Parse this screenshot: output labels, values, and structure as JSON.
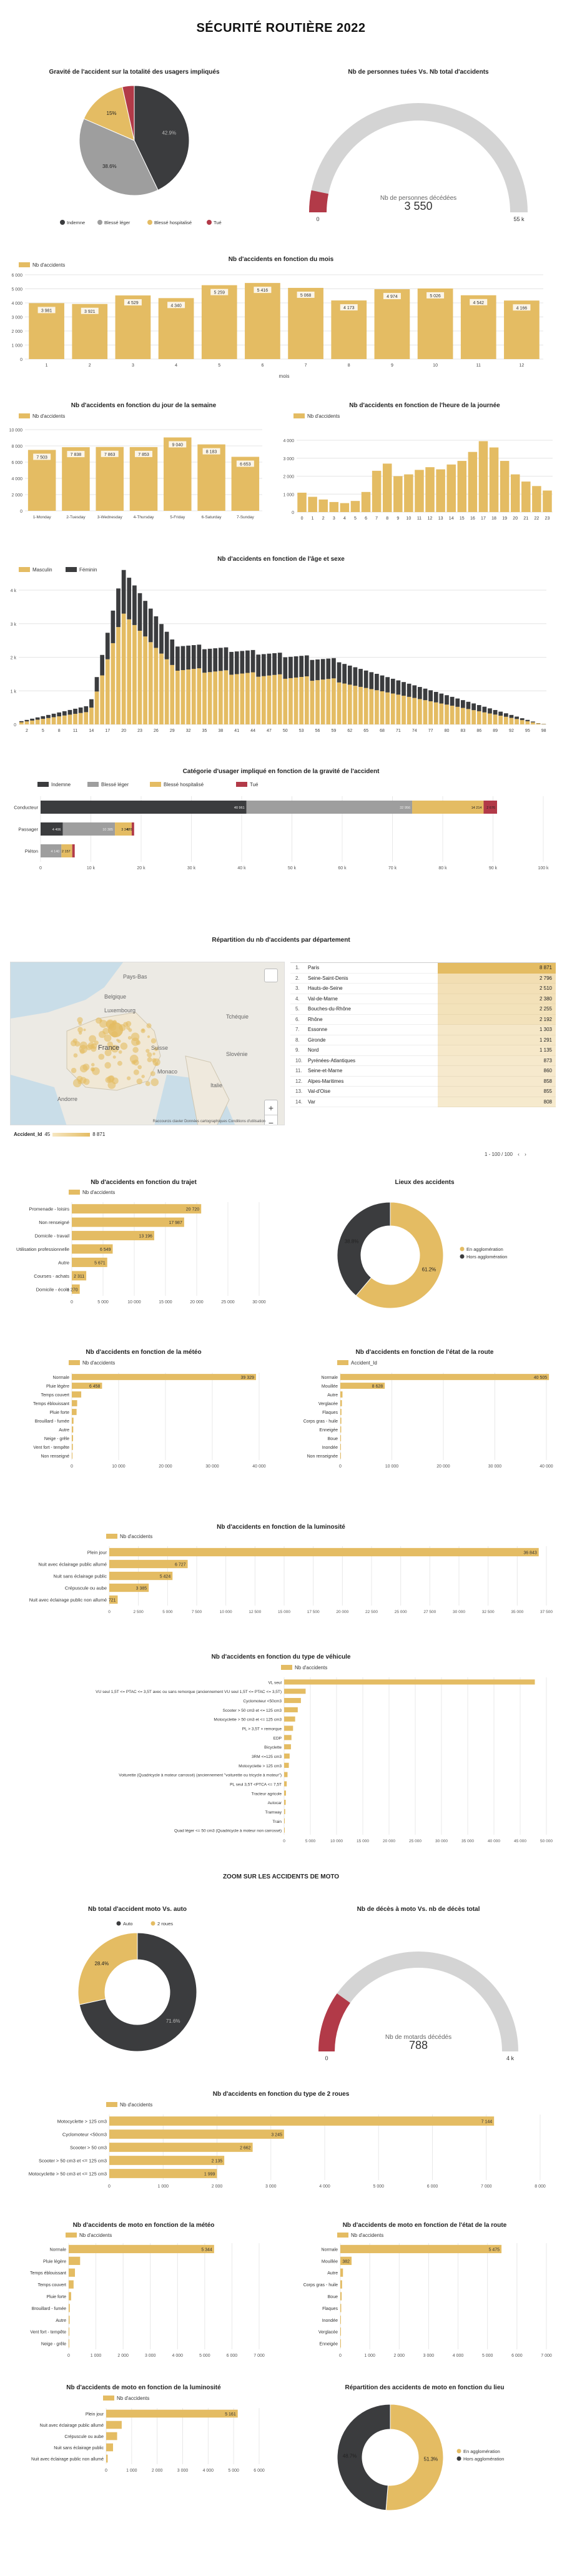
{
  "page_title": "SÉCURITÉ ROUTIÈRE 2022",
  "zoom_title": "ZOOM SUR LES ACCIDENTS DE MOTO",
  "colors": {
    "gold": "#e4bc63",
    "dark": "#3b3c3e",
    "grey": "#9e9e9e",
    "red": "#b23a48",
    "gauge_bg": "#d4d4d4"
  },
  "chart_data": [
    {
      "id": "gravite_pie",
      "type": "pie",
      "title": "Gravité de l'accident sur la totalité des usagers impliqués",
      "categories": [
        "Indemne",
        "Blessé léger",
        "Blessé hospitalisé",
        "Tué"
      ],
      "values": [
        42.9,
        38.6,
        15.0,
        3.5
      ],
      "labels": [
        "42.9%",
        "38.6%",
        "15%",
        ""
      ],
      "colors": [
        "#3b3c3e",
        "#9e9e9e",
        "#e4bc63",
        "#b23a48"
      ]
    },
    {
      "id": "tues_gauge",
      "type": "gauge",
      "title": "Nb de personnes tuées Vs. Nb total d'accidents",
      "value": 3550,
      "value_label": "3 550",
      "caption": "Nb de personnes décédées",
      "min_label": "0",
      "max_label": "55 k",
      "max": 55000
    },
    {
      "id": "mois_bar",
      "type": "bar",
      "title": "Nb d'accidents en fonction du mois",
      "legend": "Nb d'accidents",
      "xlabel": "mois",
      "categories": [
        "1",
        "2",
        "3",
        "4",
        "5",
        "6",
        "7",
        "8",
        "9",
        "10",
        "11",
        "12"
      ],
      "values": [
        3981,
        3921,
        4529,
        4340,
        5259,
        5416,
        5068,
        4173,
        4974,
        5026,
        4542,
        4166
      ],
      "labels": [
        "3 981",
        "3 921",
        "4 529",
        "4 340",
        "5 259",
        "5 416",
        "5 068",
        "4 173",
        "4 974",
        "5 026",
        "4 542",
        "4 166"
      ],
      "yticks": [
        "0",
        "1 000",
        "2 000",
        "3 000",
        "4 000",
        "5 000",
        "6 000"
      ],
      "ylim": [
        0,
        6000
      ]
    },
    {
      "id": "jour_bar",
      "type": "bar",
      "title": "Nb d'accidents en fonction du jour de la semaine",
      "legend": "Nb d'accidents",
      "categories": [
        "1-Monday",
        "2-Tuesday",
        "3-Wednesday",
        "4-Thursday",
        "5-Friday",
        "6-Saturday",
        "7-Sunday"
      ],
      "values": [
        7503,
        7838,
        7863,
        7853,
        9040,
        8183,
        6653
      ],
      "labels": [
        "7 503",
        "7 838",
        "7 863",
        "7 853",
        "9 040",
        "8 183",
        "6 653"
      ],
      "yticks": [
        "0",
        "2 000",
        "4 000",
        "6 000",
        "8 000",
        "10 000"
      ],
      "ylim": [
        0,
        10000
      ]
    },
    {
      "id": "heure_bar",
      "type": "bar",
      "title": "Nb d'accidents en fonction de l'heure de la journée",
      "legend": "Nb d'accidents",
      "categories": [
        "0",
        "1",
        "2",
        "3",
        "4",
        "5",
        "6",
        "7",
        "8",
        "9",
        "10",
        "11",
        "12",
        "13",
        "14",
        "15",
        "16",
        "17",
        "18",
        "19",
        "20",
        "21",
        "22",
        "23"
      ],
      "values": [
        1080,
        850,
        700,
        560,
        500,
        620,
        1120,
        2300,
        2700,
        2000,
        2100,
        2350,
        2500,
        2380,
        2650,
        2850,
        3350,
        3950,
        3600,
        2850,
        2100,
        1700,
        1450,
        1200
      ],
      "yticks": [
        "0",
        "1 000",
        "2 000",
        "3 000",
        "4 000"
      ],
      "ylim": [
        0,
        4000
      ]
    },
    {
      "id": "age_sexe",
      "type": "bar",
      "title": "Nb d'accidents en fonction de l'âge et sexe",
      "legend": [
        "Masculin",
        "Féminin"
      ],
      "xticks": [
        "2",
        "5",
        "8",
        "11",
        "14",
        "17",
        "20",
        "23",
        "26",
        "29",
        "32",
        "35",
        "38",
        "41",
        "44",
        "47",
        "50",
        "53",
        "56",
        "59",
        "62",
        "65",
        "68",
        "71",
        "74",
        "77",
        "80",
        "83",
        "86",
        "89",
        "92",
        "95",
        "98"
      ],
      "yticks": [
        "0",
        "1 k",
        "2 k",
        "3 k",
        "4 k"
      ],
      "ylim": [
        0,
        4000
      ]
    },
    {
      "id": "categorie_usager",
      "type": "bar",
      "title": "Catégorie d'usager impliqué en fonction de la gravité de l'accident",
      "legend": [
        "Indemne",
        "Blessé léger",
        "Blessé hospitalisé",
        "Tué"
      ],
      "categories": [
        "Conducteur",
        "Passager",
        "Piéton"
      ],
      "series": [
        {
          "name": "Indemne",
          "values": [
            40961,
            4406,
            0
          ]
        },
        {
          "name": "Blessé léger",
          "values": [
            32956,
            10385,
            4140
          ]
        },
        {
          "name": "Blessé hospitalisé",
          "values": [
            14214,
            3340,
            2157
          ]
        },
        {
          "name": "Tué",
          "values": [
            2676,
            478,
            493
          ]
        }
      ],
      "bar_labels": [
        [
          "40 961",
          "32 956",
          "14 214",
          "2 676"
        ],
        [
          "4 406",
          "10 385",
          "3 340",
          "478"
        ],
        [
          "",
          "4 140",
          "2 157",
          ""
        ]
      ],
      "xticks": [
        "0",
        "10 k",
        "20 k",
        "30 k",
        "40 k",
        "50 k",
        "60 k",
        "70 k",
        "80 k",
        "90 k",
        "100 k"
      ],
      "xlim": [
        0,
        100000
      ]
    },
    {
      "id": "trajet_bar",
      "type": "bar",
      "title": "Nb d'accidents en fonction du trajet",
      "legend": "Nb d'accidents",
      "categories": [
        "Promenade - loisirs",
        "Non renseigné",
        "Domicile - travail",
        "Utilisation professionnelle",
        "Autre",
        "Courses - achats",
        "Domicile - école"
      ],
      "values": [
        20720,
        17987,
        13196,
        6549,
        5671,
        2311,
        1270
      ],
      "labels": [
        "20 720",
        "17 987",
        "13 196",
        "6 549",
        "5 671",
        "2 311",
        "1 270"
      ],
      "xticks": [
        "0",
        "5 000",
        "10 000",
        "15 000",
        "20 000",
        "25 000",
        "30 000"
      ],
      "xlim": [
        0,
        30000
      ]
    },
    {
      "id": "lieu_donut",
      "type": "pie",
      "title": "Lieux des accidents",
      "categories": [
        "En agglomération",
        "Hors agglomération"
      ],
      "values": [
        61.2,
        38.8
      ],
      "labels": [
        "61.2%",
        "38.8%"
      ],
      "colors": [
        "#e4bc63",
        "#3b3c3e"
      ]
    },
    {
      "id": "meteo_bar",
      "type": "bar",
      "title": "Nb d'accidents en fonction de la météo",
      "legend": "Nb d'accidents",
      "categories": [
        "Normale",
        "Pluie légère",
        "Temps couvert",
        "Temps éblouissant",
        "Pluie forte",
        "Brouillard - fumée",
        "Autre",
        "Neige - grêle",
        "Vent fort - tempête",
        "Non renseigné"
      ],
      "values": [
        39329,
        6458,
        2010,
        1140,
        1020,
        360,
        300,
        260,
        220,
        20
      ],
      "labels": [
        "39 329",
        "6 458",
        "",
        "",
        "",
        "",
        "",
        "",
        "",
        ""
      ],
      "xticks": [
        "0",
        "10 000",
        "20 000",
        "30 000",
        "40 000"
      ],
      "xlim": [
        0,
        40000
      ]
    },
    {
      "id": "route_bar",
      "type": "bar",
      "title": "Nb d'accidents en fonction de l'état de la route",
      "legend": "Accident_Id",
      "categories": [
        "Normale",
        "Mouillée",
        "Autre",
        "Verglacée",
        "Flaques",
        "Corps gras - huile",
        "Enneigée",
        "Boue",
        "Inondée",
        "Non renseignée"
      ],
      "values": [
        40505,
        8628,
        420,
        310,
        220,
        200,
        170,
        130,
        60,
        40
      ],
      "labels": [
        "40 505",
        "8 628",
        "",
        "",
        "",
        "",
        "",
        "",
        "",
        ""
      ],
      "xticks": [
        "0",
        "10 000",
        "20 000",
        "30 000",
        "40 000"
      ],
      "xlim": [
        0,
        40000
      ]
    },
    {
      "id": "lumiere_bar",
      "type": "bar",
      "title": "Nb d'accidents en fonction de la luminosité",
      "legend": "Nb d'accidents",
      "categories": [
        "Plein jour",
        "Nuit avec éclairage public allumé",
        "Nuit sans éclairage public",
        "Crépuscule ou aube",
        "Nuit avec éclairage public non allumé"
      ],
      "values": [
        36843,
        6727,
        5424,
        3385,
        721
      ],
      "labels": [
        "36 843",
        "6 727",
        "5 424",
        "3 385",
        "721"
      ],
      "xticks": [
        "0",
        "2 500",
        "5 000",
        "7 500",
        "10 000",
        "12 500",
        "15 000",
        "17 500",
        "20 000",
        "22 500",
        "25 000",
        "27 500",
        "30 000",
        "32 500",
        "35 000",
        "37 500"
      ],
      "xlim": [
        0,
        37500
      ]
    },
    {
      "id": "vehicule_bar",
      "type": "bar",
      "title": "Nb d'accidents en fonction du type de véhicule",
      "legend": "Nb d'accidents",
      "categories": [
        "VL seul",
        "VU seul 1,5T <= PTAC <= 3,5T avec ou sans remorque (anciennement VU seul 1,5T <= PTAC <= 3,5T)",
        "Cyclomoteur <50cm3",
        "Scooter > 50 cm3 et <= 125 cm3",
        "Motocyclette > 50 cm3 et <= 125 cm3",
        "PL > 3,5T + remorque",
        "EDP",
        "Bicyclette",
        "3RM <=125 cm3",
        "Motocyclette > 125 cm3",
        "Voiturette (Quadricycle à moteur carrossé) (anciennement \"voiturette ou tricycle à moteur\")",
        "PL seul 3,5T <PTCA <= 7,5T",
        "Tracteur agricole",
        "Autocar",
        "Tramway",
        "Train",
        "Quad léger <= 50 cm3 (Quadricycle à moteur non carrossé)"
      ],
      "values": [
        47800,
        4100,
        3200,
        2600,
        2100,
        1700,
        1400,
        1300,
        1050,
        900,
        650,
        500,
        350,
        300,
        200,
        120,
        80
      ],
      "xticks": [
        "0",
        "5 000",
        "10 000",
        "15 000",
        "20 000",
        "25 000",
        "30 000",
        "35 000",
        "40 000",
        "45 000",
        "50 000"
      ],
      "xlim": [
        0,
        50000
      ]
    },
    {
      "id": "moto_donut",
      "type": "pie",
      "title": "Nb total d'accident moto Vs. auto",
      "categories": [
        "Auto",
        "2 roues"
      ],
      "values": [
        71.6,
        28.4
      ],
      "labels": [
        "71.6%",
        "28.4%"
      ],
      "colors": [
        "#3b3c3e",
        "#e4bc63"
      ]
    },
    {
      "id": "moto_gauge",
      "type": "gauge",
      "title": "Nb de décès à moto Vs. nb de décès total",
      "value": 788,
      "value_label": "788",
      "caption": "Nb de motards décédés",
      "min_label": "0",
      "max_label": "4 k",
      "max": 4000
    },
    {
      "id": "deuxroues_bar",
      "type": "bar",
      "title": "Nb d'accidents en fonction du type de 2 roues",
      "legend": "Nb d'accidents",
      "categories": [
        "Motocyclette > 125 cm3",
        "Cyclomoteur <50cm3",
        "Scooter > 50 cm3",
        "Scooter > 50 cm3 et <= 125 cm3",
        "Motocyclette > 50 cm3 et <= 125 cm3"
      ],
      "values": [
        7144,
        3245,
        2662,
        2135,
        1999
      ],
      "labels": [
        "7 144",
        "3 245",
        "2 662",
        "2 135",
        "1 999"
      ],
      "xticks": [
        "0",
        "1 000",
        "2 000",
        "3 000",
        "4 000",
        "5 000",
        "6 000",
        "7 000",
        "8 000"
      ],
      "xlim": [
        0,
        8000
      ]
    },
    {
      "id": "moto_meteo",
      "type": "bar",
      "title": "Nb d'accidents de moto en fonction de la météo",
      "legend": "Nb d'accidents",
      "categories": [
        "Normale",
        "Pluie légère",
        "Temps éblouissant",
        "Temps couvert",
        "Pluie forte",
        "Brouillard - fumée",
        "Autre",
        "Vent fort - tempête",
        "Neige - grêle"
      ],
      "values": [
        5344,
        420,
        230,
        180,
        90,
        40,
        35,
        25,
        15
      ],
      "labels": [
        "5 344",
        "",
        "",
        "",
        "",
        "",
        "",
        "",
        ""
      ],
      "xticks": [
        "0",
        "1 000",
        "2 000",
        "3 000",
        "4 000",
        "5 000",
        "6 000",
        "7 000"
      ],
      "xlim": [
        0,
        7000
      ]
    },
    {
      "id": "moto_route",
      "type": "bar",
      "title": "Nb d'accidents de moto en fonction de l'état de la route",
      "legend": "Nb d'accidents",
      "categories": [
        "Normale",
        "Mouillée",
        "Autre",
        "Corps gras - huile",
        "Boue",
        "Flaques",
        "Inondée",
        "Verglacée",
        "Enneigée"
      ],
      "values": [
        5475,
        382,
        90,
        60,
        45,
        30,
        15,
        12,
        8
      ],
      "labels": [
        "5 475",
        "382",
        "",
        "",
        "",
        "",
        "",
        "",
        ""
      ],
      "xticks": [
        "0",
        "1 000",
        "2 000",
        "3 000",
        "4 000",
        "5 000",
        "6 000",
        "7 000"
      ],
      "xlim": [
        0,
        7000
      ]
    },
    {
      "id": "moto_lumiere",
      "type": "bar",
      "title": "Nb d'accidents de moto en fonction de la luminosité",
      "legend": "Nb d'accidents",
      "categories": [
        "Plein jour",
        "Nuit avec éclairage public allumé",
        "Crépuscule ou aube",
        "Nuit sans éclairage public",
        "Nuit avec éclairage public non allumé"
      ],
      "values": [
        5161,
        610,
        430,
        270,
        60
      ],
      "labels": [
        "5 161",
        "",
        "",
        "",
        ""
      ],
      "xticks": [
        "0",
        "1 000",
        "2 000",
        "3 000",
        "4 000",
        "5 000",
        "6 000"
      ],
      "xlim": [
        0,
        6000
      ]
    },
    {
      "id": "moto_lieu",
      "type": "pie",
      "title": "Répartition des accidents de moto en fonction du lieu",
      "categories": [
        "En agglomération",
        "Hors agglomération"
      ],
      "values": [
        51.3,
        48.7
      ],
      "labels": [
        "51.3%",
        "48.7%"
      ],
      "colors": [
        "#e4bc63",
        "#3b3c3e"
      ]
    }
  ],
  "departements": {
    "title": "Répartition du nb d'accidents par département",
    "rows": [
      {
        "n": "1.",
        "name": "Paris",
        "value": "8 871"
      },
      {
        "n": "2.",
        "name": "Seine-Saint-Denis",
        "value": "2 796"
      },
      {
        "n": "3.",
        "name": "Hauts-de-Seine",
        "value": "2 510"
      },
      {
        "n": "4.",
        "name": "Val-de-Marne",
        "value": "2 380"
      },
      {
        "n": "5.",
        "name": "Bouches-du-Rhône",
        "value": "2 255"
      },
      {
        "n": "6.",
        "name": "Rhône",
        "value": "2 192"
      },
      {
        "n": "7.",
        "name": "Essonne",
        "value": "1 303"
      },
      {
        "n": "8.",
        "name": "Gironde",
        "value": "1 291"
      },
      {
        "n": "9.",
        "name": "Nord",
        "value": "1 135"
      },
      {
        "n": "10.",
        "name": "Pyrénées-Atlantiques",
        "value": "873"
      },
      {
        "n": "11.",
        "name": "Seine-et-Marne",
        "value": "860"
      },
      {
        "n": "12.",
        "name": "Alpes-Maritimes",
        "value": "858"
      },
      {
        "n": "13.",
        "name": "Val-d'Oise",
        "value": "855"
      },
      {
        "n": "14.",
        "name": "Var",
        "value": "808"
      }
    ],
    "pager": "1 - 100 / 100",
    "map_attribution": "Raccourcis clavier   Données cartographiques   Conditions d'utilisation",
    "map_legend_label": "Accident_Id",
    "map_legend_min": "45",
    "map_legend_max": "8 871",
    "map_labels": [
      "Pays-Bas",
      "Belgique",
      "Luxembourg",
      "Tchéquie",
      "France",
      "Suisse",
      "Slovénie",
      "Monaco",
      "Andorre",
      "Italie"
    ]
  }
}
